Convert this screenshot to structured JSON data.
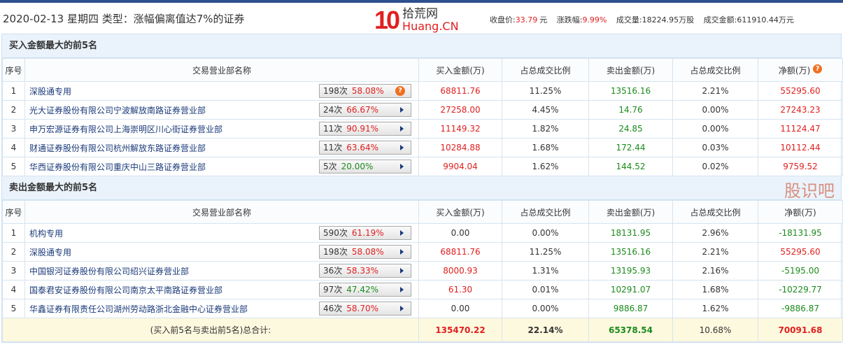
{
  "header": {
    "title": "2020-02-13 星期四  类型：涨幅偏离值达7%的证券",
    "logo_number": "10",
    "logo_cn": "拾荒网",
    "logo_en": "Huang.CN",
    "close_label": "收盘价:",
    "close_value": "33.79",
    "close_unit": "元",
    "chg_label": "涨跌幅:",
    "chg_value": "9.99%",
    "vol_label": "成交量:",
    "vol_value": "18224.95万股",
    "amt_label": "成交金额:",
    "amt_value": "611910.44万元"
  },
  "columns": [
    "序号",
    "交易营业部名称",
    "买入金额(万)",
    "占总成交比例",
    "卖出金额(万)",
    "占总成交比例",
    "净额(万)"
  ],
  "colors": {
    "red": "#e02020",
    "green": "#1c8a1c"
  },
  "buy": {
    "title": "买入金额最大的前5名",
    "rows": [
      {
        "no": "1",
        "name": "深股通专用",
        "times": "198次",
        "pct": "58.08%",
        "pct_color": "red",
        "icon": "question",
        "buy": "68811.76",
        "buy_ratio": "11.25%",
        "sell": "13516.16",
        "sell_ratio": "2.21%",
        "net": "55295.60",
        "net_color": "red"
      },
      {
        "no": "2",
        "name": "光大证券股份有限公司宁波解放南路证券营业部",
        "times": "24次",
        "pct": "66.67%",
        "pct_color": "red",
        "icon": "arrow",
        "buy": "27258.00",
        "buy_ratio": "4.45%",
        "sell": "14.76",
        "sell_ratio": "0.00%",
        "net": "27243.23",
        "net_color": "red"
      },
      {
        "no": "3",
        "name": "申万宏源证券有限公司上海崇明区川心街证券营业部",
        "times": "11次",
        "pct": "90.91%",
        "pct_color": "red",
        "icon": "arrow",
        "buy": "11149.32",
        "buy_ratio": "1.82%",
        "sell": "24.85",
        "sell_ratio": "0.00%",
        "net": "11124.47",
        "net_color": "red"
      },
      {
        "no": "4",
        "name": "财通证券股份有限公司杭州解放东路证券营业部",
        "times": "11次",
        "pct": "63.64%",
        "pct_color": "red",
        "icon": "arrow",
        "buy": "10284.88",
        "buy_ratio": "1.68%",
        "sell": "172.44",
        "sell_ratio": "0.03%",
        "net": "10112.44",
        "net_color": "red"
      },
      {
        "no": "5",
        "name": "华西证券股份有限公司重庆中山三路证券营业部",
        "times": "5次",
        "pct": "20.00%",
        "pct_color": "green",
        "icon": "arrow",
        "buy": "9904.04",
        "buy_ratio": "1.62%",
        "sell": "144.52",
        "sell_ratio": "0.02%",
        "net": "9759.52",
        "net_color": "red"
      }
    ]
  },
  "sell": {
    "title": "卖出金额最大的前5名",
    "rows": [
      {
        "no": "1",
        "name": "机构专用",
        "times": "590次",
        "pct": "61.19%",
        "pct_color": "red",
        "icon": "arrow",
        "buy": "0.00",
        "buy_color": "plain",
        "buy_ratio": "0.00%",
        "sell": "18131.95",
        "sell_ratio": "2.96%",
        "net": "-18131.95",
        "net_color": "green"
      },
      {
        "no": "2",
        "name": "深股通专用",
        "times": "198次",
        "pct": "58.08%",
        "pct_color": "red",
        "icon": "arrow",
        "buy": "68811.76",
        "buy_color": "red",
        "buy_ratio": "11.25%",
        "sell": "13516.16",
        "sell_ratio": "2.21%",
        "net": "55295.60",
        "net_color": "red"
      },
      {
        "no": "3",
        "name": "中国银河证券股份有限公司绍兴证券营业部",
        "times": "36次",
        "pct": "58.33%",
        "pct_color": "red",
        "icon": "arrow",
        "buy": "8000.93",
        "buy_color": "red",
        "buy_ratio": "1.31%",
        "sell": "13195.93",
        "sell_ratio": "2.16%",
        "net": "-5195.00",
        "net_color": "green"
      },
      {
        "no": "4",
        "name": "国泰君安证券股份有限公司南京太平南路证券营业部",
        "times": "97次",
        "pct": "47.42%",
        "pct_color": "green",
        "icon": "arrow",
        "buy": "61.30",
        "buy_color": "red",
        "buy_ratio": "0.01%",
        "sell": "10291.07",
        "sell_ratio": "1.68%",
        "net": "-10229.77",
        "net_color": "green"
      },
      {
        "no": "5",
        "name": "华鑫证券有限责任公司湖州劳动路浙北金融中心证券营业部",
        "times": "46次",
        "pct": "58.70%",
        "pct_color": "red",
        "icon": "arrow",
        "buy": "0.00",
        "buy_color": "plain",
        "buy_ratio": "0.00%",
        "sell": "9886.87",
        "sell_ratio": "1.62%",
        "net": "-9886.87",
        "net_color": "green"
      }
    ]
  },
  "total": {
    "label": "(买入前5名与卖出前5名)总合计:",
    "buy": "135470.22",
    "buy_ratio": "22.14%",
    "sell": "65378.54",
    "sell_ratio": "10.68%",
    "net": "70091.68"
  },
  "watermark": "股识吧"
}
